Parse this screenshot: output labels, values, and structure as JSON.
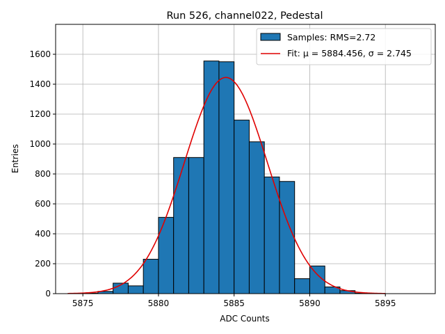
{
  "chart_data": {
    "type": "bar",
    "title": "Run 526, channel022, Pedestal",
    "xlabel": "ADC Counts",
    "ylabel": "Entries",
    "xlim": [
      5873.2,
      5898.3
    ],
    "ylim": [
      0,
      1800
    ],
    "xticks": [
      5875,
      5880,
      5885,
      5890,
      5895
    ],
    "yticks": [
      0,
      200,
      400,
      600,
      800,
      1000,
      1200,
      1400,
      1600
    ],
    "grid": true,
    "legend_position": "top-right",
    "bar_color": "#1f77b4",
    "fit_color": "#e00000",
    "bin_width": 1,
    "bins": [
      {
        "left": 5875,
        "value": 3
      },
      {
        "left": 5876,
        "value": 15
      },
      {
        "left": 5877,
        "value": 70
      },
      {
        "left": 5878,
        "value": 52
      },
      {
        "left": 5879,
        "value": 230
      },
      {
        "left": 5880,
        "value": 510
      },
      {
        "left": 5881,
        "value": 910
      },
      {
        "left": 5882,
        "value": 910
      },
      {
        "left": 5883,
        "value": 1555
      },
      {
        "left": 5884,
        "value": 1550
      },
      {
        "left": 5885,
        "value": 1160
      },
      {
        "left": 5886,
        "value": 1015
      },
      {
        "left": 5887,
        "value": 780
      },
      {
        "left": 5888,
        "value": 750
      },
      {
        "left": 5889,
        "value": 100
      },
      {
        "left": 5890,
        "value": 185
      },
      {
        "left": 5891,
        "value": 45
      },
      {
        "left": 5892,
        "value": 20
      },
      {
        "left": 5893,
        "value": 3
      }
    ],
    "fit": {
      "mu": 5884.456,
      "sigma": 2.745,
      "amplitude": 1445,
      "x_range": [
        5874,
        5895
      ]
    },
    "legend": {
      "samples_label": "Samples: RMS=2.72",
      "fit_label": "Fit: μ = 5884.456, σ = 2.745"
    }
  }
}
